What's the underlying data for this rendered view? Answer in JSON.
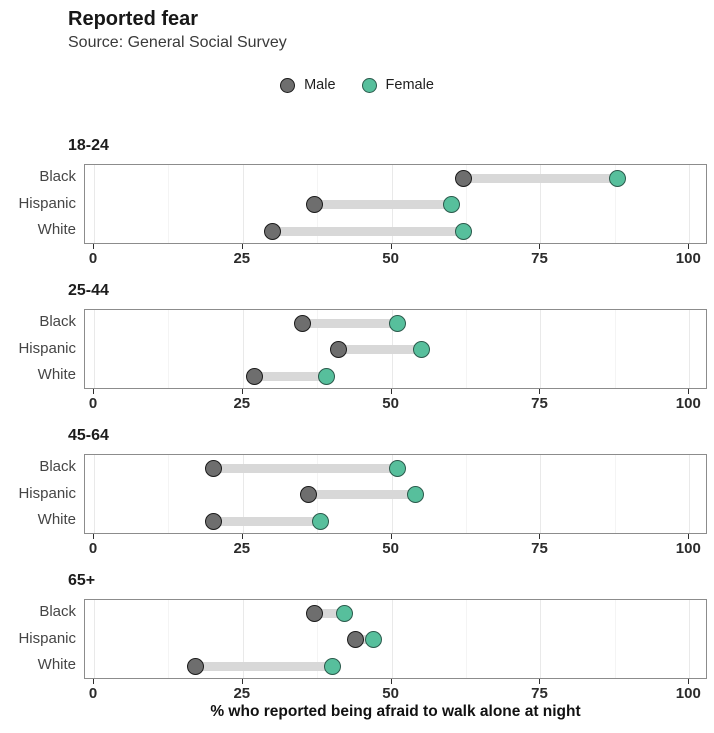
{
  "header": {
    "title": "Reported fear",
    "subtitle": "Source: General Social Survey"
  },
  "legend": {
    "items": [
      {
        "label": "Male",
        "fill": "#6e6e6e",
        "stroke": "#1b1b1b"
      },
      {
        "label": "Female",
        "fill": "#57bf9c",
        "stroke": "#2b5a4c"
      }
    ]
  },
  "colors": {
    "male_fill": "#6e6e6e",
    "male_stroke": "#1b1b1b",
    "female_fill": "#57bf9c",
    "female_stroke": "#2b5a4c",
    "connector_bar": "#d8d8d8",
    "grid_major": "#e9e9e9",
    "grid_minor": "#f4f4f4",
    "panel_border": "#8c8c8c"
  },
  "chart_data": {
    "type": "dumbbell",
    "title": "Reported fear",
    "subtitle": "Source: General Social Survey",
    "xlabel": "% who reported being afraid to walk alone at night",
    "xlim": [
      0,
      100
    ],
    "x_major_ticks": [
      0,
      25,
      50,
      75,
      100
    ],
    "x_minor_gridlines": [
      12.5,
      37.5,
      62.5,
      87.5
    ],
    "grid": true,
    "legend_position": "top-center",
    "series_names": [
      "Male",
      "Female"
    ],
    "facets": [
      {
        "label": "18-24",
        "rows": [
          {
            "category": "Black",
            "male": 62,
            "female": 88
          },
          {
            "category": "Hispanic",
            "male": 37,
            "female": 60
          },
          {
            "category": "White",
            "male": 30,
            "female": 62
          }
        ]
      },
      {
        "label": "25-44",
        "rows": [
          {
            "category": "Black",
            "male": 35,
            "female": 51
          },
          {
            "category": "Hispanic",
            "male": 41,
            "female": 55
          },
          {
            "category": "White",
            "male": 27,
            "female": 39
          }
        ]
      },
      {
        "label": "45-64",
        "rows": [
          {
            "category": "Black",
            "male": 20,
            "female": 51
          },
          {
            "category": "Hispanic",
            "male": 36,
            "female": 54
          },
          {
            "category": "White",
            "male": 20,
            "female": 38
          }
        ]
      },
      {
        "label": "65+",
        "rows": [
          {
            "category": "Black",
            "male": 37,
            "female": 42
          },
          {
            "category": "Hispanic",
            "male": 44,
            "female": 47
          },
          {
            "category": "White",
            "male": 17,
            "female": 40
          }
        ]
      }
    ]
  }
}
